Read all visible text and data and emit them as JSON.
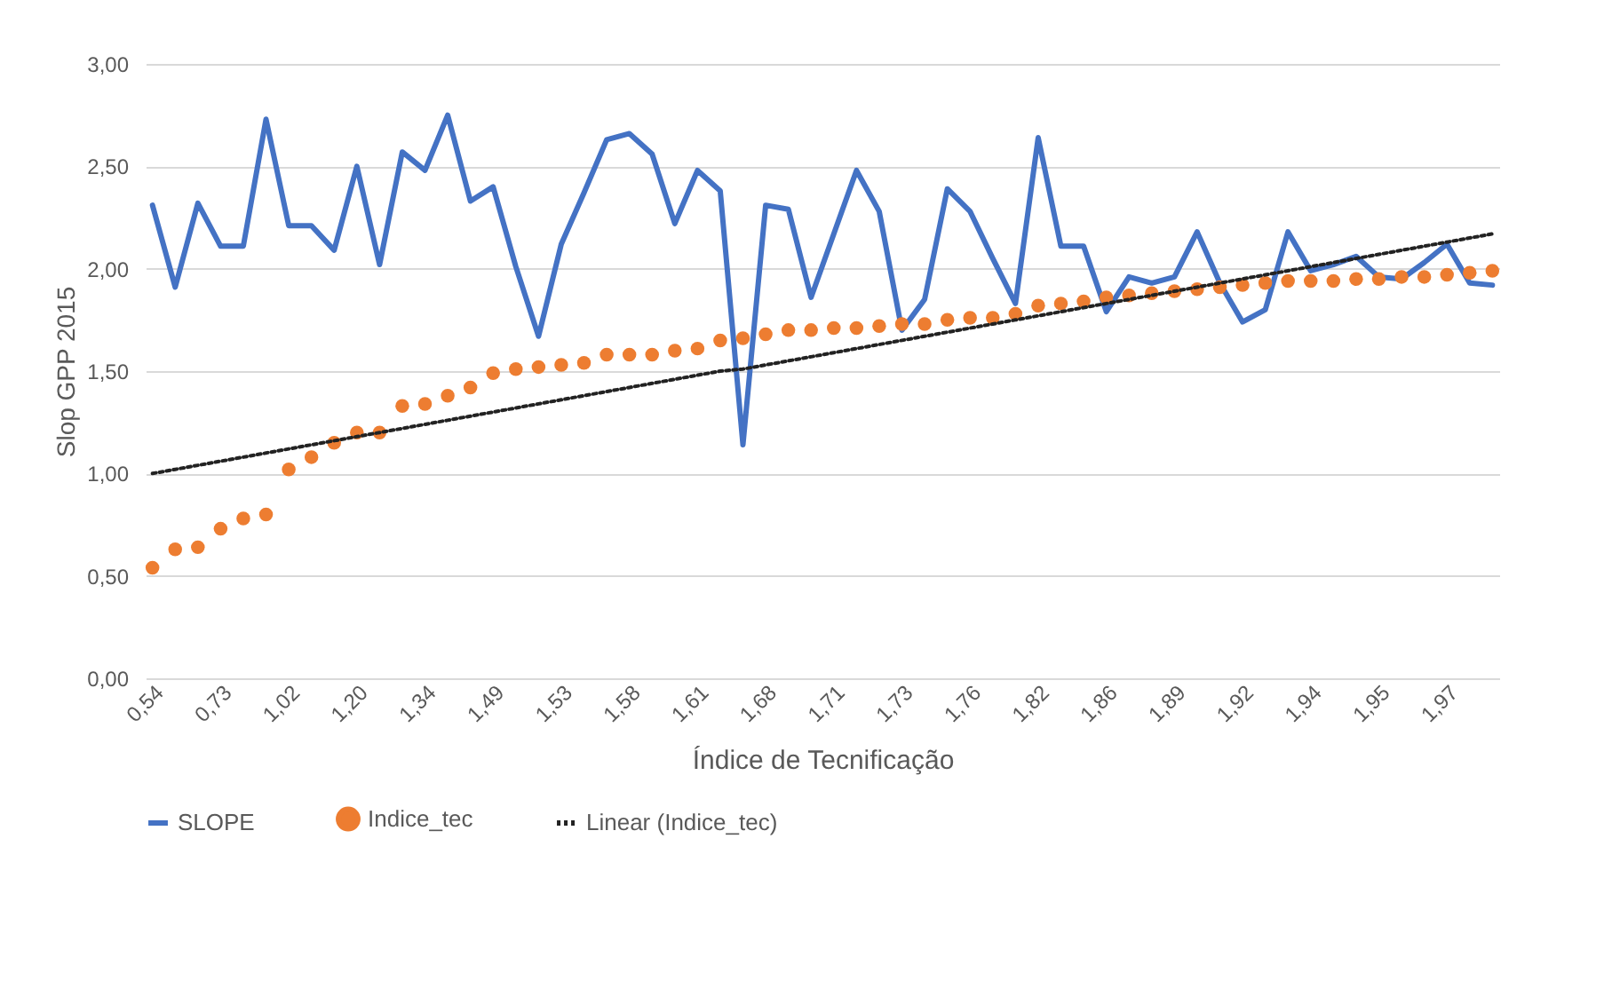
{
  "chart_data": {
    "type": "line",
    "xlabel": "Índice de Tecnificação",
    "ylabel": "Slop GPP 2015",
    "categories": [
      "0,54",
      null,
      null,
      "0,73",
      null,
      null,
      "1,02",
      null,
      null,
      "1,20",
      null,
      null,
      "1,34",
      null,
      null,
      "1,49",
      null,
      null,
      "1,53",
      null,
      null,
      "1,58",
      null,
      null,
      "1,61",
      null,
      null,
      "1,68",
      null,
      null,
      "1,71",
      null,
      null,
      "1,73",
      null,
      null,
      "1,76",
      null,
      null,
      "1,82",
      null,
      null,
      "1,86",
      null,
      null,
      "1,89",
      null,
      null,
      "1,92",
      null,
      null,
      "1,94",
      null,
      null,
      "1,95",
      null,
      null,
      "1,97",
      null,
      null
    ],
    "ylim": [
      0,
      3
    ],
    "yticks": [
      {
        "value": 0,
        "label": "0,00"
      },
      {
        "value": 0.5,
        "label": "0,50"
      },
      {
        "value": 1,
        "label": "1,00"
      },
      {
        "value": 1.5,
        "label": "1,50"
      },
      {
        "value": 2,
        "label": "2,00"
      },
      {
        "value": 2.5,
        "label": "2,50"
      },
      {
        "value": 3,
        "label": "3,00"
      }
    ],
    "grid": "y",
    "legend": "bottom",
    "series": [
      {
        "name": "SLOPE",
        "marker": "none",
        "color": "#4472c4",
        "values": [
          2.31,
          1.91,
          2.32,
          2.11,
          2.11,
          2.73,
          2.21,
          2.21,
          2.09,
          2.5,
          2.02,
          2.57,
          2.48,
          2.75,
          2.33,
          2.4,
          2.01,
          1.67,
          2.12,
          2.37,
          2.63,
          2.66,
          2.56,
          2.22,
          2.48,
          2.38,
          1.14,
          2.31,
          2.29,
          1.86,
          2.17,
          2.48,
          2.28,
          1.7,
          1.85,
          2.39,
          2.28,
          2.05,
          1.83,
          2.64,
          2.11,
          2.11,
          1.79,
          1.96,
          1.93,
          1.96,
          2.18,
          1.93,
          1.74,
          1.8,
          2.18,
          1.99,
          2.02,
          2.06,
          1.96,
          1.95,
          2.03,
          2.12,
          1.93,
          1.92
        ]
      },
      {
        "name": "Indice_tec",
        "type": "scatter",
        "marker": "circle",
        "color": "#ed7d31",
        "values": [
          0.54,
          0.63,
          0.64,
          0.73,
          0.78,
          0.8,
          1.02,
          1.08,
          1.15,
          1.2,
          1.2,
          1.33,
          1.34,
          1.38,
          1.42,
          1.49,
          1.51,
          1.52,
          1.53,
          1.54,
          1.58,
          1.58,
          1.58,
          1.6,
          1.61,
          1.65,
          1.66,
          1.68,
          1.7,
          1.7,
          1.71,
          1.71,
          1.72,
          1.73,
          1.73,
          1.75,
          1.76,
          1.76,
          1.78,
          1.82,
          1.83,
          1.84,
          1.86,
          1.87,
          1.88,
          1.89,
          1.9,
          1.91,
          1.92,
          1.93,
          1.94,
          1.94,
          1.94,
          1.95,
          1.95,
          1.96,
          1.96,
          1.97,
          1.98,
          1.99
        ]
      },
      {
        "name": "Linear (Indice_tec)",
        "marker": "none",
        "line_style": "dotted",
        "color": "#222222",
        "values": [
          1.0,
          1.02,
          1.04,
          1.06,
          1.08,
          1.1,
          1.12,
          1.14,
          1.16,
          1.18,
          1.2,
          1.22,
          1.24,
          1.26,
          1.28,
          1.3,
          1.32,
          1.34,
          1.36,
          1.38,
          1.4,
          1.42,
          1.44,
          1.46,
          1.48,
          1.5,
          1.51,
          1.53,
          1.55,
          1.57,
          1.59,
          1.61,
          1.63,
          1.65,
          1.67,
          1.69,
          1.71,
          1.73,
          1.75,
          1.77,
          1.79,
          1.81,
          1.83,
          1.85,
          1.87,
          1.89,
          1.91,
          1.93,
          1.95,
          1.97,
          1.99,
          2.01,
          2.03,
          2.05,
          2.07,
          2.09,
          2.11,
          2.13,
          2.15,
          2.17
        ]
      }
    ]
  }
}
